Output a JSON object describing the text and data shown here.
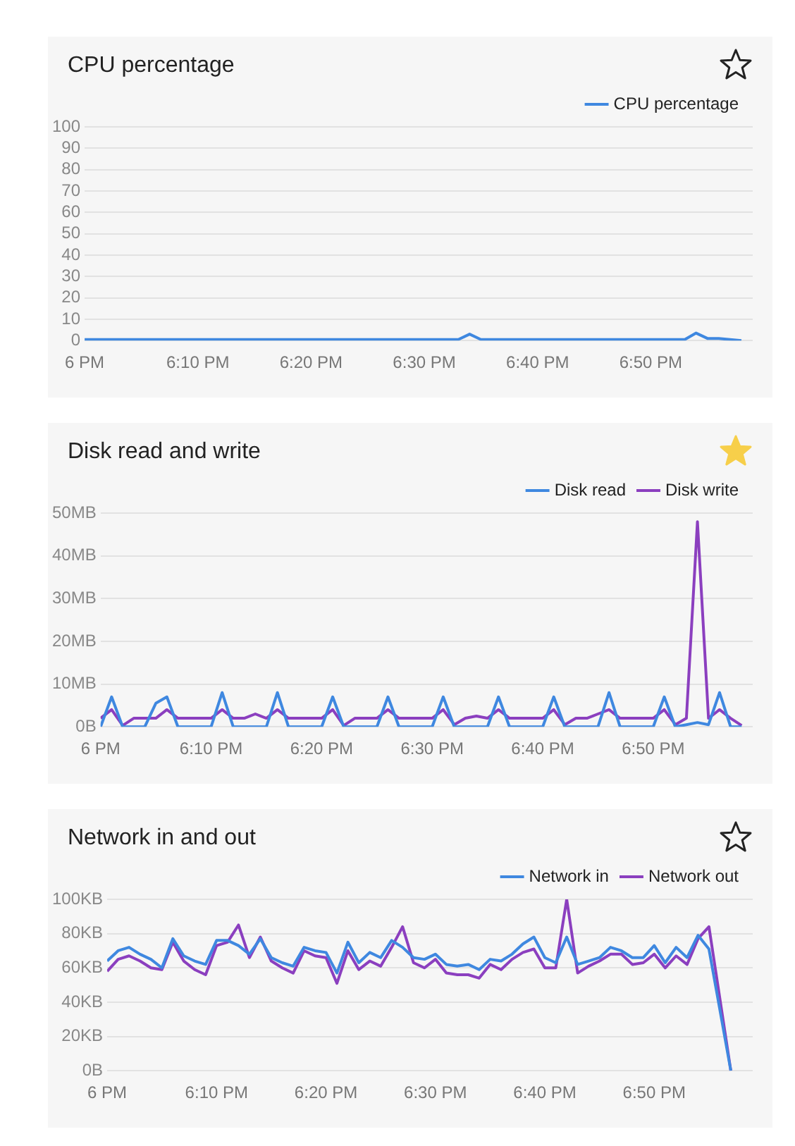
{
  "chart_data": [
    {
      "type": "line",
      "title": "CPU percentage",
      "legend": "top right",
      "grid": "y",
      "x": [
        "--01-01T18:00",
        "--01-01T18:01",
        "--01-01T18:02",
        "--01-01T18:03",
        "--01-01T18:04",
        "--01-01T18:05",
        "--01-01T18:06",
        "--01-01T18:07",
        "--01-01T18:08",
        "--01-01T18:09",
        "--01-01T18:10",
        "--01-01T18:11",
        "--01-01T18:12",
        "--01-01T18:13",
        "--01-01T18:14",
        "--01-01T18:15",
        "--01-01T18:16",
        "--01-01T18:17",
        "--01-01T18:18",
        "--01-01T18:19",
        "--01-01T18:20",
        "--01-01T18:21",
        "--01-01T18:22",
        "--01-01T18:23",
        "--01-01T18:24",
        "--01-01T18:25",
        "--01-01T18:26",
        "--01-01T18:27",
        "--01-01T18:28",
        "--01-01T18:29",
        "--01-01T18:30",
        "--01-01T18:31",
        "--01-01T18:32",
        "--01-01T18:33",
        "--01-01T18:34",
        "--01-01T18:35",
        "--01-01T18:36",
        "--01-01T18:37",
        "--01-01T18:38",
        "--01-01T18:39",
        "--01-01T18:40",
        "--01-01T18:41",
        "--01-01T18:42",
        "--01-01T18:43",
        "--01-01T18:44",
        "--01-01T18:45",
        "--01-01T18:46",
        "--01-01T18:47",
        "--01-01T18:48",
        "--01-01T18:49",
        "--01-01T18:50",
        "--01-01T18:51",
        "--01-01T18:52",
        "--01-01T18:53",
        "--01-01T18:54",
        "--01-01T18:55",
        "--01-01T18:56",
        "--01-01T18:57",
        "--01-01T18:58"
      ],
      "xlim": [
        "--01-01T18:00",
        "--01-01T18:59"
      ],
      "xticks": [
        {
          "value": "--01-01T18:00",
          "label": "6 PM"
        },
        {
          "value": "--01-01T18:10",
          "label": "6:10 PM"
        },
        {
          "value": "--01-01T18:20",
          "label": "6:20 PM"
        },
        {
          "value": "--01-01T18:30",
          "label": "6:30 PM"
        },
        {
          "value": "--01-01T18:40",
          "label": "6:40 PM"
        },
        {
          "value": "--01-01T18:50",
          "label": "6:50 PM"
        }
      ],
      "ylim": [
        0,
        100
      ],
      "yticks": [
        0,
        10,
        20,
        30,
        40,
        50,
        60,
        70,
        80,
        90,
        100
      ],
      "series": [
        {
          "name": "CPU percentage",
          "color": "#3f88e0",
          "values": [
            0.5,
            0.5,
            0.5,
            0.5,
            0.5,
            0.5,
            0.5,
            0.5,
            0.5,
            0.5,
            0.5,
            0.5,
            0.5,
            0.5,
            0.5,
            0.5,
            0.5,
            0.5,
            0.5,
            0.5,
            0.5,
            0.5,
            0.5,
            0.5,
            0.5,
            0.5,
            0.5,
            0.5,
            0.5,
            0.5,
            0.5,
            0.5,
            0.5,
            0.5,
            3,
            0.5,
            0.5,
            0.5,
            0.5,
            0.5,
            0.5,
            0.5,
            0.5,
            0.5,
            0.5,
            0.5,
            0.5,
            0.5,
            0.5,
            0.5,
            0.5,
            0.5,
            0.5,
            0.5,
            3.5,
            1,
            1,
            0.5,
            0
          ]
        }
      ]
    },
    {
      "type": "line",
      "title": "Disk read and write",
      "legend": "top right",
      "grid": "y",
      "x": [
        "--01-01T18:00",
        "--01-01T18:01",
        "--01-01T18:02",
        "--01-01T18:03",
        "--01-01T18:04",
        "--01-01T18:05",
        "--01-01T18:06",
        "--01-01T18:07",
        "--01-01T18:08",
        "--01-01T18:09",
        "--01-01T18:10",
        "--01-01T18:11",
        "--01-01T18:12",
        "--01-01T18:13",
        "--01-01T18:14",
        "--01-01T18:15",
        "--01-01T18:16",
        "--01-01T18:17",
        "--01-01T18:18",
        "--01-01T18:19",
        "--01-01T18:20",
        "--01-01T18:21",
        "--01-01T18:22",
        "--01-01T18:23",
        "--01-01T18:24",
        "--01-01T18:25",
        "--01-01T18:26",
        "--01-01T18:27",
        "--01-01T18:28",
        "--01-01T18:29",
        "--01-01T18:30",
        "--01-01T18:31",
        "--01-01T18:32",
        "--01-01T18:33",
        "--01-01T18:34",
        "--01-01T18:35",
        "--01-01T18:36",
        "--01-01T18:37",
        "--01-01T18:38",
        "--01-01T18:39",
        "--01-01T18:40",
        "--01-01T18:41",
        "--01-01T18:42",
        "--01-01T18:43",
        "--01-01T18:44",
        "--01-01T18:45",
        "--01-01T18:46",
        "--01-01T18:47",
        "--01-01T18:48",
        "--01-01T18:49",
        "--01-01T18:50",
        "--01-01T18:51",
        "--01-01T18:52",
        "--01-01T18:53",
        "--01-01T18:54",
        "--01-01T18:55",
        "--01-01T18:56",
        "--01-01T18:57",
        "--01-01T18:58"
      ],
      "xlim": [
        "--01-01T18:00",
        "--01-01T18:59"
      ],
      "xticks": [
        {
          "value": "--01-01T18:00",
          "label": "6 PM"
        },
        {
          "value": "--01-01T18:10",
          "label": "6:10 PM"
        },
        {
          "value": "--01-01T18:20",
          "label": "6:20 PM"
        },
        {
          "value": "--01-01T18:30",
          "label": "6:30 PM"
        },
        {
          "value": "--01-01T18:40",
          "label": "6:40 PM"
        },
        {
          "value": "--01-01T18:50",
          "label": "6:50 PM"
        }
      ],
      "ylim": [
        0,
        50
      ],
      "yticks": [
        {
          "value": 0,
          "label": "0B"
        },
        {
          "value": 10,
          "label": "10MB"
        },
        {
          "value": 20,
          "label": "20MB"
        },
        {
          "value": 30,
          "label": "30MB"
        },
        {
          "value": 40,
          "label": "40MB"
        },
        {
          "value": 50,
          "label": "50MB"
        }
      ],
      "series": [
        {
          "name": "Disk read",
          "color": "#3f88e0",
          "values": [
            0,
            7,
            0,
            0,
            0,
            5.5,
            7,
            0,
            0,
            0,
            0,
            8,
            0,
            0,
            0,
            0,
            8,
            0,
            0,
            0,
            0,
            7,
            0,
            0,
            0,
            0,
            7,
            0,
            0,
            0,
            0,
            7,
            0,
            0,
            0,
            0,
            7,
            0,
            0,
            0,
            0,
            7,
            0,
            0,
            0,
            0,
            8,
            0,
            0,
            0,
            0,
            7,
            0,
            0.5,
            1,
            0.5,
            8,
            0,
            0
          ]
        },
        {
          "name": "Disk write",
          "color": "#8b3fbf",
          "values": [
            2,
            4,
            0.3,
            2,
            2,
            2,
            4,
            2,
            2,
            2,
            2,
            4,
            2,
            2,
            3,
            2,
            4,
            2,
            2,
            2,
            2,
            4,
            0.3,
            2,
            2,
            2,
            4,
            2,
            2,
            2,
            2,
            4,
            0.5,
            2,
            2.5,
            2,
            4,
            2,
            2,
            2,
            2,
            4,
            0.5,
            2,
            2,
            3,
            4,
            2,
            2,
            2,
            2,
            4,
            0.5,
            2,
            48,
            2,
            4,
            2,
            0.3
          ]
        }
      ]
    },
    {
      "type": "line",
      "title": "Network in and out",
      "legend": "top right",
      "grid": "y",
      "x": [
        "--01-01T18:00",
        "--01-01T18:01",
        "--01-01T18:02",
        "--01-01T18:03",
        "--01-01T18:04",
        "--01-01T18:05",
        "--01-01T18:06",
        "--01-01T18:07",
        "--01-01T18:08",
        "--01-01T18:09",
        "--01-01T18:10",
        "--01-01T18:11",
        "--01-01T18:12",
        "--01-01T18:13",
        "--01-01T18:14",
        "--01-01T18:15",
        "--01-01T18:16",
        "--01-01T18:17",
        "--01-01T18:18",
        "--01-01T18:19",
        "--01-01T18:20",
        "--01-01T18:21",
        "--01-01T18:22",
        "--01-01T18:23",
        "--01-01T18:24",
        "--01-01T18:25",
        "--01-01T18:26",
        "--01-01T18:27",
        "--01-01T18:28",
        "--01-01T18:29",
        "--01-01T18:30",
        "--01-01T18:31",
        "--01-01T18:32",
        "--01-01T18:33",
        "--01-01T18:34",
        "--01-01T18:35",
        "--01-01T18:36",
        "--01-01T18:37",
        "--01-01T18:38",
        "--01-01T18:39",
        "--01-01T18:40",
        "--01-01T18:41",
        "--01-01T18:42",
        "--01-01T18:43",
        "--01-01T18:44",
        "--01-01T18:45",
        "--01-01T18:46",
        "--01-01T18:47",
        "--01-01T18:48",
        "--01-01T18:49",
        "--01-01T18:50",
        "--01-01T18:51",
        "--01-01T18:52",
        "--01-01T18:53",
        "--01-01T18:54",
        "--01-01T18:55",
        "--01-01T18:57"
      ],
      "xlim": [
        "--01-01T18:00",
        "--01-01T18:59"
      ],
      "xticks": [
        {
          "value": "--01-01T18:00",
          "label": "6 PM"
        },
        {
          "value": "--01-01T18:10",
          "label": "6:10 PM"
        },
        {
          "value": "--01-01T18:20",
          "label": "6:20 PM"
        },
        {
          "value": "--01-01T18:30",
          "label": "6:30 PM"
        },
        {
          "value": "--01-01T18:40",
          "label": "6:40 PM"
        },
        {
          "value": "--01-01T18:50",
          "label": "6:50 PM"
        }
      ],
      "ylim": [
        0,
        100
      ],
      "yticks": [
        {
          "value": 0,
          "label": "0B"
        },
        {
          "value": 20,
          "label": "20KB"
        },
        {
          "value": 40,
          "label": "40KB"
        },
        {
          "value": 60,
          "label": "60KB"
        },
        {
          "value": 80,
          "label": "80KB"
        },
        {
          "value": 100,
          "label": "100KB"
        }
      ],
      "series": [
        {
          "name": "Network in",
          "color": "#3f88e0",
          "values": [
            64,
            70,
            72,
            68,
            65,
            60,
            77,
            67,
            64,
            62,
            76,
            76,
            73,
            68,
            77,
            66,
            63,
            61,
            72,
            70,
            69,
            57,
            75,
            63,
            69,
            66,
            76,
            72,
            66,
            65,
            68,
            62,
            61,
            62,
            59,
            65,
            64,
            68,
            74,
            78,
            66,
            63,
            78,
            62,
            64,
            66,
            72,
            70,
            66,
            66,
            73,
            63,
            72,
            66,
            79,
            71,
            0
          ]
        },
        {
          "name": "Network out",
          "color": "#8b3fbf",
          "values": [
            58,
            65,
            67,
            64,
            60,
            59,
            75,
            64,
            59,
            56,
            73,
            75,
            85,
            66,
            78,
            64,
            60,
            57,
            70,
            67,
            66,
            51,
            70,
            59,
            64,
            61,
            72,
            84,
            63,
            60,
            65,
            57,
            56,
            56,
            54,
            62,
            59,
            65,
            69,
            71,
            60,
            60,
            100,
            57,
            61,
            64,
            68,
            68,
            62,
            63,
            68,
            60,
            67,
            62,
            77,
            84,
            0
          ]
        }
      ]
    }
  ]
}
